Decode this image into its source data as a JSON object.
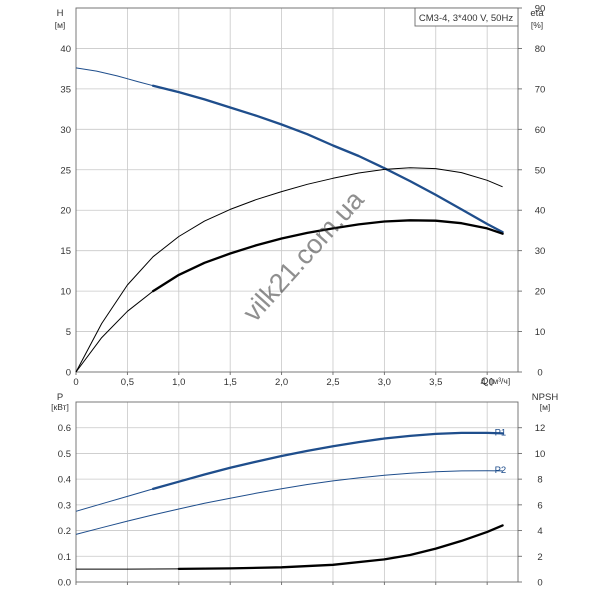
{
  "chart_data": [
    {
      "type": "line",
      "panel": "pump-curves",
      "title": "CM3-4, 3*400 V, 50Hz",
      "xlabel": "Q",
      "xunit": "[м³/ч]",
      "ylabel": "H",
      "yunit": "[м]",
      "y2label": "eta",
      "y2unit": "[%]",
      "xlim": [
        0,
        4.3
      ],
      "ylim": [
        0,
        45
      ],
      "y2lim": [
        0,
        90
      ],
      "x_ticks": [
        "0",
        "0,5",
        "1,0",
        "1,5",
        "2,0",
        "2,5",
        "3,0",
        "3,5",
        "4,0"
      ],
      "y_ticks": [
        "0",
        "5",
        "10",
        "15",
        "20",
        "25",
        "30",
        "35",
        "40"
      ],
      "y2_ticks": [
        "0",
        "10",
        "20",
        "30",
        "40",
        "50",
        "60",
        "70",
        "80",
        "90"
      ],
      "grid": true,
      "series": [
        {
          "role": "head",
          "axis": "left",
          "color": "#1f4e8c",
          "x": [
            0,
            0.2,
            0.4,
            0.6,
            0.75,
            1.0,
            1.25,
            1.5,
            1.75,
            2.0,
            2.25,
            2.5,
            2.75,
            3.0,
            3.25,
            3.5,
            3.75,
            4.0,
            4.15
          ],
          "y": [
            37.6,
            37.2,
            36.6,
            35.9,
            35.4,
            34.6,
            33.7,
            32.7,
            31.7,
            30.6,
            29.4,
            28.0,
            26.7,
            25.2,
            23.6,
            21.9,
            20.1,
            18.3,
            17.3
          ],
          "bold_from": 0.75
        },
        {
          "role": "eta-thin",
          "axis": "right",
          "color": "#000000",
          "x": [
            0,
            0.25,
            0.5,
            0.75,
            1.0,
            1.25,
            1.5,
            1.75,
            2.0,
            2.25,
            2.5,
            2.75,
            3.0,
            3.25,
            3.5,
            3.75,
            4.0,
            4.15
          ],
          "y": [
            0,
            12,
            21.5,
            28.5,
            33.5,
            37.3,
            40.2,
            42.6,
            44.6,
            46.4,
            47.9,
            49.2,
            50.1,
            50.5,
            50.3,
            49.3,
            47.4,
            45.8
          ]
        },
        {
          "role": "eta-bold",
          "axis": "right",
          "color": "#000000",
          "x": [
            0,
            0.25,
            0.5,
            0.75,
            1.0,
            1.25,
            1.5,
            1.75,
            2.0,
            2.25,
            2.5,
            2.75,
            3.0,
            3.25,
            3.5,
            3.75,
            4.0,
            4.15
          ],
          "y": [
            0,
            8.5,
            15,
            20,
            24,
            27,
            29.3,
            31.3,
            33,
            34.4,
            35.5,
            36.5,
            37.2,
            37.5,
            37.4,
            36.8,
            35.5,
            34.2
          ],
          "bold_from": 0.75
        }
      ]
    },
    {
      "type": "line",
      "panel": "power-npsh",
      "ylabel": "P",
      "yunit": "[кВт]",
      "y2label": "NPSH",
      "y2unit": "[м]",
      "xlim": [
        0,
        4.3
      ],
      "ylim": [
        0,
        0.7
      ],
      "y2lim": [
        0,
        14
      ],
      "y_ticks": [
        "0.0",
        "0.1",
        "0.2",
        "0.3",
        "0.4",
        "0.5",
        "0.6"
      ],
      "y2_ticks": [
        "0",
        "2",
        "4",
        "6",
        "8",
        "10",
        "12"
      ],
      "grid": true,
      "series": [
        {
          "name": "P1",
          "axis": "left",
          "color": "#1f4e8c",
          "x": [
            0,
            0.25,
            0.5,
            0.75,
            1.0,
            1.25,
            1.5,
            1.75,
            2.0,
            2.25,
            2.5,
            2.75,
            3.0,
            3.25,
            3.5,
            3.75,
            4.0,
            4.15
          ],
          "y": [
            0.275,
            0.304,
            0.333,
            0.362,
            0.39,
            0.418,
            0.444,
            0.468,
            0.49,
            0.51,
            0.528,
            0.544,
            0.558,
            0.568,
            0.576,
            0.58,
            0.58,
            0.578
          ],
          "bold_from": 0.75
        },
        {
          "name": "P2",
          "axis": "left",
          "color": "#1f4e8c",
          "x": [
            0,
            0.25,
            0.5,
            0.75,
            1.0,
            1.25,
            1.5,
            1.75,
            2.0,
            2.25,
            2.5,
            2.75,
            3.0,
            3.25,
            3.5,
            3.75,
            4.0,
            4.15
          ],
          "y": [
            0.185,
            0.211,
            0.237,
            0.261,
            0.284,
            0.306,
            0.326,
            0.345,
            0.363,
            0.379,
            0.393,
            0.405,
            0.415,
            0.423,
            0.429,
            0.432,
            0.433,
            0.432
          ]
        },
        {
          "role": "npsh",
          "axis": "right",
          "color": "#000000",
          "x": [
            0,
            0.5,
            1.0,
            1.5,
            2.0,
            2.5,
            3.0,
            3.25,
            3.5,
            3.75,
            4.0,
            4.15
          ],
          "y": [
            1.0,
            1.0,
            1.02,
            1.06,
            1.14,
            1.34,
            1.76,
            2.1,
            2.6,
            3.2,
            3.9,
            4.4
          ],
          "bold_from": 0.75
        }
      ]
    }
  ],
  "watermark": "vilk21.com.ua"
}
